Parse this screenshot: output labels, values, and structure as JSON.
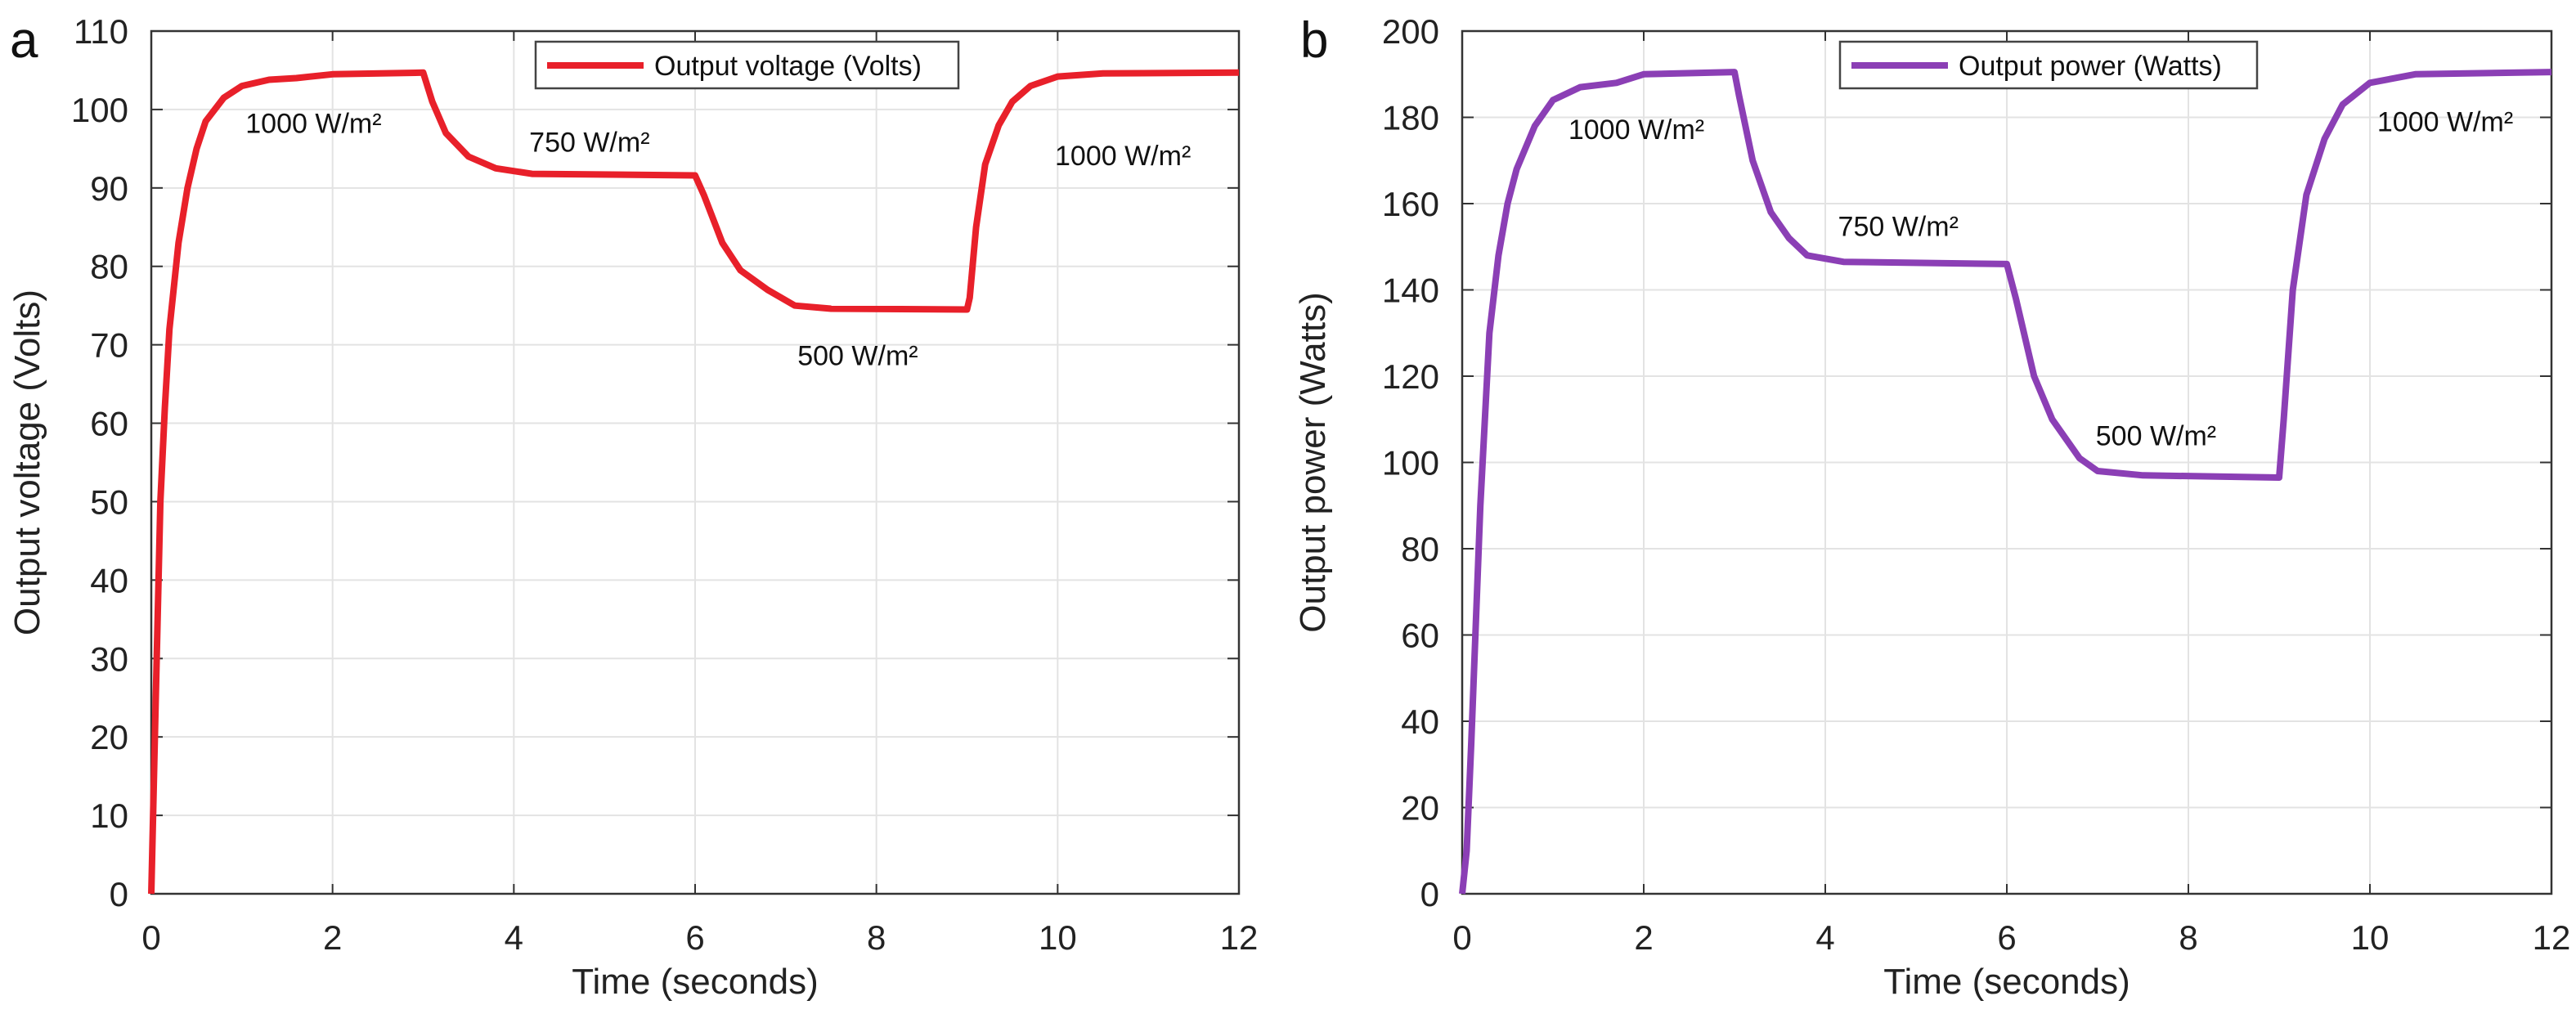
{
  "chart_data": [
    {
      "type": "line",
      "panel_label": "a",
      "xlabel": "Time (seconds)",
      "ylabel": "Output voltage (Volts)",
      "xlim": [
        0,
        12
      ],
      "ylim": [
        0,
        110
      ],
      "xticks": [
        0,
        2,
        4,
        6,
        8,
        10,
        12
      ],
      "yticks": [
        0,
        10,
        20,
        30,
        40,
        50,
        60,
        70,
        80,
        90,
        100,
        110
      ],
      "grid": true,
      "legend_position": "top-center",
      "series": [
        {
          "name": "Output voltage (Volts)",
          "color": "#e8202a",
          "x": [
            0,
            0.05,
            0.1,
            0.15,
            0.2,
            0.3,
            0.4,
            0.5,
            0.6,
            0.8,
            1.0,
            1.3,
            1.6,
            2,
            3,
            3.1,
            3.25,
            3.5,
            3.8,
            4.2,
            6,
            6.1,
            6.3,
            6.5,
            6.8,
            7.1,
            7.5,
            9,
            9.03,
            9.1,
            9.2,
            9.35,
            9.5,
            9.7,
            10,
            10.5,
            12
          ],
          "y": [
            0,
            25,
            50,
            62,
            72,
            83,
            90,
            95,
            98.5,
            101.5,
            103,
            103.8,
            104,
            104.5,
            104.7,
            101,
            97,
            94,
            92.5,
            91.8,
            91.6,
            89,
            83,
            79.5,
            77,
            75,
            74.6,
            74.5,
            76,
            85,
            93,
            98,
            101,
            103,
            104.2,
            104.6,
            104.7
          ]
        }
      ],
      "annotations": [
        {
          "text": "1000 W/m²",
          "x": 1.04,
          "y": 97
        },
        {
          "text": "750 W/m²",
          "x": 4.17,
          "y": 94.6
        },
        {
          "text": "500 W/m²",
          "x": 7.13,
          "y": 67.4
        },
        {
          "text": "1000 W/m²",
          "x": 9.97,
          "y": 92.9
        }
      ]
    },
    {
      "type": "line",
      "panel_label": "b",
      "xlabel": "Time (seconds)",
      "ylabel": "Output power (Watts)",
      "xlim": [
        0,
        12
      ],
      "ylim": [
        0,
        200
      ],
      "xticks": [
        0,
        2,
        4,
        6,
        8,
        10,
        12
      ],
      "yticks": [
        0,
        20,
        40,
        60,
        80,
        100,
        120,
        140,
        160,
        180,
        200
      ],
      "grid": true,
      "legend_position": "top-center",
      "series": [
        {
          "name": "Output power (Watts)",
          "color": "#8b3fb5",
          "x": [
            0,
            0.05,
            0.1,
            0.2,
            0.3,
            0.4,
            0.5,
            0.6,
            0.8,
            1,
            1.3,
            1.7,
            2,
            3,
            3.05,
            3.2,
            3.4,
            3.6,
            3.8,
            4.2,
            6,
            6.1,
            6.3,
            6.5,
            6.8,
            7,
            7.5,
            9,
            9.05,
            9.15,
            9.3,
            9.5,
            9.7,
            10,
            10.5,
            12
          ],
          "y": [
            0,
            10,
            35,
            90,
            130,
            148,
            160,
            168,
            178,
            184,
            187,
            188,
            190,
            190.5,
            185,
            170,
            158,
            152,
            148,
            146.5,
            146,
            138,
            120,
            110,
            101,
            98,
            97,
            96.5,
            110,
            140,
            162,
            175,
            183,
            188,
            190,
            190.5
          ]
        }
      ],
      "annotations": [
        {
          "text": "1000 W/m²",
          "x": 1.17,
          "y": 175
        },
        {
          "text": "750 W/m²",
          "x": 4.14,
          "y": 152.5
        },
        {
          "text": "500 W/m²",
          "x": 6.98,
          "y": 104
        },
        {
          "text": "1000 W/m²",
          "x": 10.08,
          "y": 176.8
        }
      ]
    }
  ]
}
